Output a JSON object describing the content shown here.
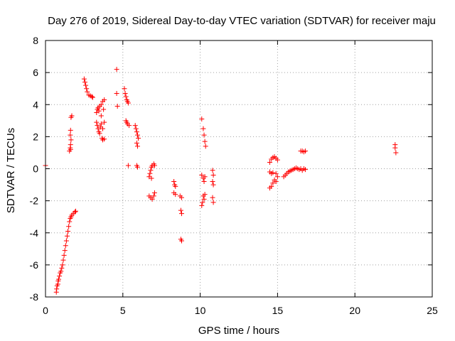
{
  "chart_data": {
    "type": "scatter",
    "title": "Day 276 of 2019, Sidereal Day-to-day VTEC variation (SDTVAR) for receiver maju",
    "xlabel": "GPS time / hours",
    "ylabel": "SDTVAR / TECUs",
    "xlim": [
      0,
      25
    ],
    "ylim": [
      -8,
      8
    ],
    "xticks": [
      0,
      5,
      10,
      15,
      20,
      25
    ],
    "yticks": [
      -8,
      -6,
      -4,
      -2,
      0,
      2,
      4,
      6,
      8
    ],
    "grid": true,
    "marker": "+",
    "marker_color": "#ff0000",
    "series": [
      {
        "name": "SDTVAR",
        "points": [
          [
            0.0,
            0.2
          ],
          [
            0.7,
            -7.7
          ],
          [
            0.72,
            -7.5
          ],
          [
            0.75,
            -7.3
          ],
          [
            0.8,
            -7.2
          ],
          [
            0.82,
            -7.0
          ],
          [
            0.85,
            -6.9
          ],
          [
            0.9,
            -6.7
          ],
          [
            0.95,
            -6.5
          ],
          [
            1.0,
            -6.4
          ],
          [
            1.05,
            -6.2
          ],
          [
            1.1,
            -6.0
          ],
          [
            1.15,
            -5.7
          ],
          [
            1.2,
            -5.4
          ],
          [
            1.25,
            -5.1
          ],
          [
            1.3,
            -4.8
          ],
          [
            1.35,
            -4.5
          ],
          [
            1.4,
            -4.2
          ],
          [
            1.45,
            -3.9
          ],
          [
            1.5,
            -3.6
          ],
          [
            1.55,
            -3.3
          ],
          [
            1.6,
            -3.1
          ],
          [
            1.65,
            -3.0
          ],
          [
            1.7,
            -2.9
          ],
          [
            1.8,
            -2.8
          ],
          [
            1.9,
            -2.7
          ],
          [
            1.95,
            -2.65
          ],
          [
            1.55,
            1.1
          ],
          [
            1.6,
            1.3
          ],
          [
            1.62,
            1.5
          ],
          [
            1.65,
            1.8
          ],
          [
            1.6,
            2.1
          ],
          [
            1.62,
            2.4
          ],
          [
            1.65,
            3.2
          ],
          [
            1.7,
            3.3
          ],
          [
            1.62,
            1.2
          ],
          [
            2.5,
            5.6
          ],
          [
            2.55,
            5.4
          ],
          [
            2.6,
            5.2
          ],
          [
            2.65,
            5.0
          ],
          [
            2.7,
            4.8
          ],
          [
            2.8,
            4.6
          ],
          [
            2.9,
            4.55
          ],
          [
            3.0,
            4.5
          ],
          [
            3.05,
            4.45
          ],
          [
            3.3,
            3.5
          ],
          [
            3.35,
            3.7
          ],
          [
            3.4,
            3.8
          ],
          [
            3.45,
            3.6
          ],
          [
            3.5,
            3.9
          ],
          [
            3.6,
            4.0
          ],
          [
            3.7,
            4.2
          ],
          [
            3.8,
            4.3
          ],
          [
            3.3,
            2.9
          ],
          [
            3.35,
            2.7
          ],
          [
            3.4,
            2.5
          ],
          [
            3.45,
            2.3
          ],
          [
            3.5,
            2.2
          ],
          [
            3.55,
            2.6
          ],
          [
            3.6,
            2.8
          ],
          [
            3.7,
            2.5
          ],
          [
            3.8,
            2.9
          ],
          [
            3.65,
            1.9
          ],
          [
            3.7,
            1.8
          ],
          [
            3.8,
            1.85
          ],
          [
            3.6,
            3.3
          ],
          [
            3.75,
            3.7
          ],
          [
            4.6,
            6.2
          ],
          [
            4.6,
            4.7
          ],
          [
            4.65,
            3.9
          ],
          [
            5.1,
            5.0
          ],
          [
            5.15,
            4.7
          ],
          [
            5.2,
            4.5
          ],
          [
            5.25,
            4.3
          ],
          [
            5.3,
            4.2
          ],
          [
            5.35,
            4.1
          ],
          [
            5.2,
            3.0
          ],
          [
            5.25,
            2.9
          ],
          [
            5.3,
            2.8
          ],
          [
            5.4,
            2.7
          ],
          [
            5.35,
            0.2
          ],
          [
            5.8,
            2.7
          ],
          [
            5.85,
            2.5
          ],
          [
            5.9,
            2.3
          ],
          [
            5.95,
            2.1
          ],
          [
            6.0,
            1.9
          ],
          [
            5.9,
            1.6
          ],
          [
            5.95,
            1.4
          ],
          [
            5.9,
            0.2
          ],
          [
            5.95,
            0.1
          ],
          [
            6.7,
            -0.5
          ],
          [
            6.75,
            -0.3
          ],
          [
            6.8,
            -0.1
          ],
          [
            6.85,
            0.1
          ],
          [
            6.9,
            0.2
          ],
          [
            7.0,
            0.3
          ],
          [
            7.05,
            0.2
          ],
          [
            6.7,
            -1.7
          ],
          [
            6.8,
            -1.8
          ],
          [
            6.9,
            -1.9
          ],
          [
            7.0,
            -1.7
          ],
          [
            7.05,
            -1.5
          ],
          [
            6.85,
            -0.6
          ],
          [
            8.3,
            -0.8
          ],
          [
            8.35,
            -1.0
          ],
          [
            8.4,
            -1.1
          ],
          [
            8.3,
            -1.5
          ],
          [
            8.4,
            -1.6
          ],
          [
            8.7,
            -1.7
          ],
          [
            8.8,
            -1.8
          ],
          [
            8.75,
            -2.6
          ],
          [
            8.8,
            -2.8
          ],
          [
            8.75,
            -4.4
          ],
          [
            8.8,
            -4.5
          ],
          [
            10.1,
            3.1
          ],
          [
            10.2,
            2.5
          ],
          [
            10.25,
            2.1
          ],
          [
            10.3,
            1.7
          ],
          [
            10.35,
            1.4
          ],
          [
            10.1,
            -0.4
          ],
          [
            10.2,
            -0.6
          ],
          [
            10.25,
            -0.8
          ],
          [
            10.3,
            -0.5
          ],
          [
            10.2,
            -1.7
          ],
          [
            10.25,
            -1.9
          ],
          [
            10.15,
            -2.1
          ],
          [
            10.1,
            -2.3
          ],
          [
            10.3,
            -1.6
          ],
          [
            10.8,
            -0.1
          ],
          [
            10.85,
            -0.4
          ],
          [
            10.8,
            -0.8
          ],
          [
            10.85,
            -1.0
          ],
          [
            10.8,
            -1.8
          ],
          [
            10.85,
            -2.1
          ],
          [
            14.5,
            -1.2
          ],
          [
            14.6,
            -1.1
          ],
          [
            14.7,
            -0.9
          ],
          [
            14.8,
            -0.7
          ],
          [
            14.9,
            -0.8
          ],
          [
            15.0,
            -0.5
          ],
          [
            14.5,
            -0.2
          ],
          [
            14.6,
            -0.3
          ],
          [
            14.7,
            -0.25
          ],
          [
            14.9,
            -0.3
          ],
          [
            14.5,
            0.4
          ],
          [
            14.6,
            0.6
          ],
          [
            14.7,
            0.7
          ],
          [
            14.8,
            0.75
          ],
          [
            14.9,
            0.65
          ],
          [
            15.0,
            0.55
          ],
          [
            15.4,
            -0.5
          ],
          [
            15.5,
            -0.4
          ],
          [
            15.6,
            -0.3
          ],
          [
            15.7,
            -0.2
          ],
          [
            15.8,
            -0.15
          ],
          [
            15.9,
            -0.1
          ],
          [
            16.0,
            -0.05
          ],
          [
            16.1,
            0.0
          ],
          [
            16.2,
            0.05
          ],
          [
            16.3,
            0.0
          ],
          [
            16.4,
            -0.05
          ],
          [
            16.5,
            0.0
          ],
          [
            16.6,
            -0.1
          ],
          [
            16.7,
            0.0
          ],
          [
            16.8,
            -0.05
          ],
          [
            16.5,
            1.1
          ],
          [
            16.6,
            1.1
          ],
          [
            16.7,
            1.05
          ],
          [
            16.8,
            1.1
          ],
          [
            22.6,
            1.5
          ],
          [
            22.6,
            1.3
          ],
          [
            22.65,
            1.0
          ]
        ]
      }
    ]
  }
}
